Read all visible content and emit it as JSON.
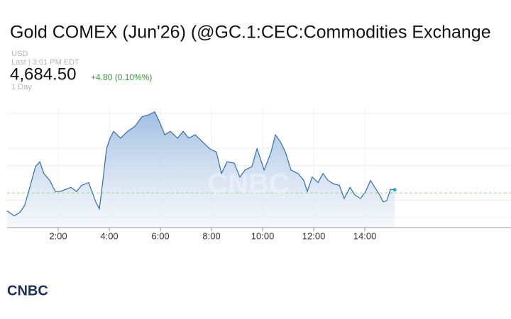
{
  "chart_data": {
    "type": "area-line",
    "title": "Gold COMEX (Jun'26) (@GC.1:CEC:Commodities Exchange",
    "currency": "USD",
    "last_time": "Last | 3:01 PM EDT",
    "price": "4,684.50",
    "change": "+4.80 (0.10%%)",
    "period": "1 Day",
    "watermark": "CNBC",
    "logo": "CNBC",
    "color": "#2f6fb0",
    "change_color": "#3a9a3a",
    "reference_line": 4680,
    "xlim": [
      0,
      19.72
    ],
    "ylim": [
      4630,
      4805
    ],
    "xticks": [
      {
        "value": 2,
        "label": "2:00"
      },
      {
        "value": 4,
        "label": "4:00"
      },
      {
        "value": 6,
        "label": "6:00"
      },
      {
        "value": 8,
        "label": "8:00"
      },
      {
        "value": 10,
        "label": "10:00"
      },
      {
        "value": 12,
        "label": "12:00"
      },
      {
        "value": 14,
        "label": "14:00"
      }
    ],
    "x": [
      0,
      0.28,
      0.5,
      0.69,
      0.89,
      1.11,
      1.28,
      1.44,
      1.67,
      1.89,
      2.08,
      2.28,
      2.5,
      2.72,
      2.92,
      3.19,
      3.47,
      3.61,
      3.75,
      3.89,
      4.03,
      4.17,
      4.44,
      4.72,
      5,
      5.28,
      5.56,
      5.78,
      5.97,
      6.17,
      6.39,
      6.67,
      6.89,
      7.11,
      7.36,
      7.64,
      7.92,
      8.19,
      8.39,
      8.61,
      8.89,
      9.11,
      9.31,
      9.58,
      9.78,
      10.06,
      10.33,
      10.5,
      10.69,
      10.89,
      11.11,
      11.39,
      11.61,
      11.75,
      11.94,
      12.17,
      12.36,
      12.56,
      12.78,
      13,
      13.19,
      13.42,
      13.61,
      13.83,
      14.03,
      14.22,
      14.39,
      14.58,
      14.72,
      14.86,
      15,
      15.17
    ],
    "values": [
      4654,
      4647,
      4652,
      4662,
      4688,
      4718,
      4725,
      4708,
      4698,
      4682,
      4682,
      4685,
      4688,
      4682,
      4691,
      4695,
      4667,
      4657,
      4698,
      4744,
      4759,
      4769,
      4759,
      4769,
      4776,
      4790,
      4793,
      4797,
      4782,
      4764,
      4769,
      4759,
      4769,
      4759,
      4764,
      4754,
      4744,
      4739,
      4708,
      4725,
      4723,
      4703,
      4713,
      4718,
      4744,
      4713,
      4739,
      4764,
      4754,
      4739,
      4713,
      4708,
      4698,
      4682,
      4703,
      4695,
      4708,
      4698,
      4693,
      4691,
      4672,
      4688,
      4677,
      4672,
      4682,
      4698,
      4688,
      4677,
      4667,
      4669,
      4685,
      4684.5
    ]
  }
}
